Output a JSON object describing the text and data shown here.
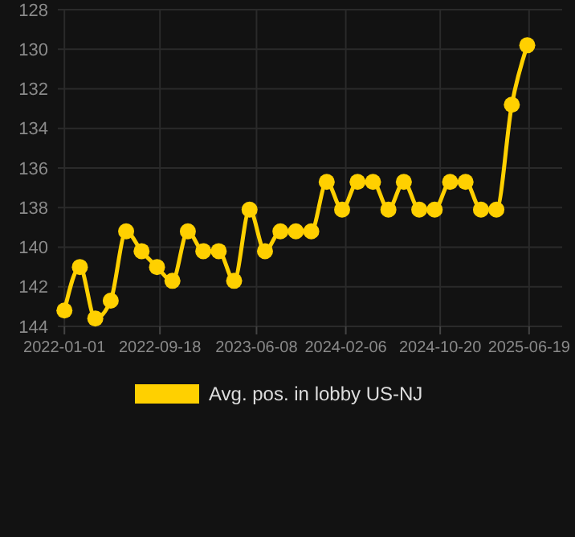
{
  "chart_data": {
    "type": "line",
    "x": [
      "2022-01-01",
      "2022-02-12",
      "2022-03-26",
      "2022-05-07",
      "2022-06-18",
      "2022-07-30",
      "2022-09-10",
      "2022-10-22",
      "2022-12-03",
      "2023-01-14",
      "2023-02-25",
      "2023-04-08",
      "2023-05-20",
      "2023-07-01",
      "2023-08-12",
      "2023-09-23",
      "2023-11-04",
      "2023-12-16",
      "2024-01-27",
      "2024-03-09",
      "2024-04-20",
      "2024-06-01",
      "2024-07-13",
      "2024-08-24",
      "2024-10-05",
      "2024-11-16",
      "2024-12-28",
      "2025-02-08",
      "2025-03-22",
      "2025-05-03",
      "2025-06-14"
    ],
    "series": [
      {
        "name": "Avg. pos. in lobby US-NJ",
        "color": "#ffd000",
        "values": [
          143.2,
          141.0,
          143.6,
          142.7,
          139.2,
          140.2,
          141.0,
          141.7,
          139.2,
          140.2,
          140.2,
          141.7,
          138.1,
          140.2,
          139.2,
          139.2,
          139.2,
          136.7,
          138.1,
          136.7,
          136.7,
          138.1,
          136.7,
          138.1,
          138.1,
          136.7,
          136.7,
          138.1,
          138.1,
          132.8,
          129.8
        ]
      }
    ],
    "xlim": [
      "2021-12-14",
      "2025-09-17"
    ],
    "xticks": [
      "2022-01-01",
      "2022-09-18",
      "2023-06-08",
      "2024-02-06",
      "2024-10-20",
      "2025-06-19"
    ],
    "ylim": [
      144,
      128
    ],
    "yticks": [
      128,
      130,
      132,
      134,
      136,
      138,
      140,
      142,
      144
    ],
    "grid": true,
    "legend": "bottom",
    "marker": "circle",
    "line_style": "solid"
  }
}
